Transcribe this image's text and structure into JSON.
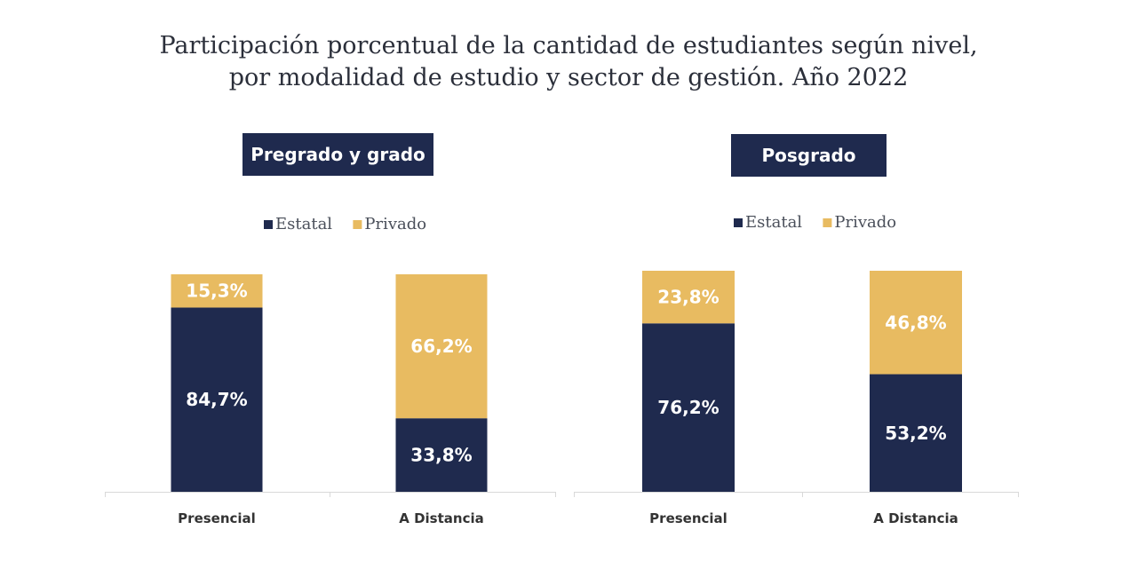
{
  "title": {
    "line1": "Participación porcentual de la cantidad de estudiantes según nivel,",
    "line2": "por modalidad de estudio y sector de gestión. Año 2022"
  },
  "colors": {
    "estatal": "#1f2a4e",
    "privado": "#e8bb61",
    "axis": "#d9d9d9"
  },
  "chart_data": [
    {
      "type": "bar",
      "stacked": true,
      "title": "Pregrado y grado",
      "categories": [
        "Presencial",
        "A Distancia"
      ],
      "series": [
        {
          "name": "Estatal",
          "values": [
            84.7,
            33.8
          ],
          "labels": [
            "84,7%",
            "33,8%"
          ]
        },
        {
          "name": "Privado",
          "values": [
            15.3,
            66.2
          ],
          "labels": [
            "15,3%",
            "66,2%"
          ]
        }
      ],
      "ylim": [
        0,
        100
      ],
      "grid": false,
      "legend": "top-center"
    },
    {
      "type": "bar",
      "stacked": true,
      "title": "Posgrado",
      "categories": [
        "Presencial",
        "A Distancia"
      ],
      "series": [
        {
          "name": "Estatal",
          "values": [
            76.2,
            53.2
          ],
          "labels": [
            "76,2%",
            "53,2%"
          ]
        },
        {
          "name": "Privado",
          "values": [
            23.8,
            46.8
          ],
          "labels": [
            "23,8%",
            "46,8%"
          ]
        }
      ],
      "ylim": [
        0,
        100
      ],
      "grid": false,
      "legend": "top-center"
    }
  ]
}
